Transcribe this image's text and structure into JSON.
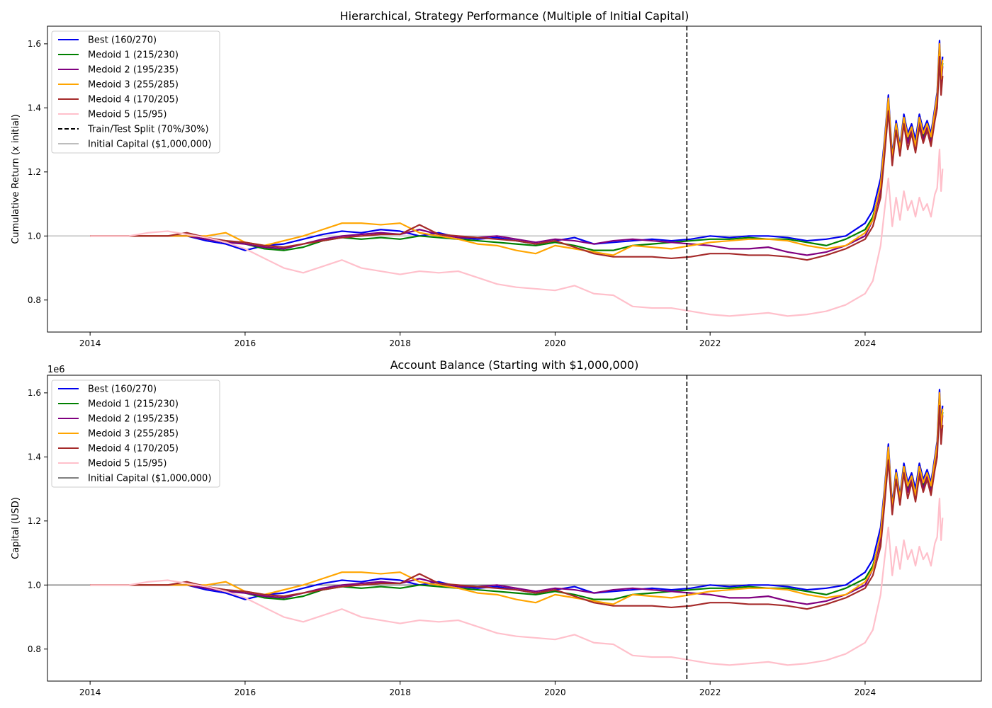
{
  "chart_data": [
    {
      "type": "line",
      "title": "Hierarchical, Strategy Performance (Multiple of Initial Capital)",
      "xlabel": "",
      "ylabel": "Cumulative Return (x initial)",
      "offset_label": "",
      "xlim": [
        2013.45,
        2025.5
      ],
      "ylim": [
        0.7,
        1.655
      ],
      "xticks": [
        2014,
        2016,
        2018,
        2020,
        2022,
        2024
      ],
      "xtick_labels": [
        "2014",
        "2016",
        "2018",
        "2020",
        "2022",
        "2024"
      ],
      "yticks": [
        0.8,
        1.0,
        1.2,
        1.4,
        1.6
      ],
      "ytick_labels": [
        "0.8",
        "1.0",
        "1.2",
        "1.4",
        "1.6"
      ],
      "grid": false,
      "legend_position": "top-left",
      "split": {
        "x": 2021.7,
        "label": "Train/Test Split (70%/30%)",
        "color": "#000000"
      },
      "baseline": {
        "y": 1.0,
        "label": "Initial Capital ($1,000,000)",
        "color": "#bdbdbd"
      }
    },
    {
      "type": "line",
      "title": "Account Balance (Starting with $1,000,000)",
      "xlabel": "",
      "ylabel": "Capital (USD)",
      "offset_label": "1e6",
      "xlim": [
        2013.45,
        2025.5
      ],
      "ylim": [
        0.7,
        1.655
      ],
      "xticks": [
        2014,
        2016,
        2018,
        2020,
        2022,
        2024
      ],
      "xtick_labels": [
        "2014",
        "2016",
        "2018",
        "2020",
        "2022",
        "2024"
      ],
      "yticks": [
        0.8,
        1.0,
        1.2,
        1.4,
        1.6
      ],
      "ytick_labels": [
        "0.8",
        "1.0",
        "1.2",
        "1.4",
        "1.6"
      ],
      "grid": false,
      "legend_position": "top-left",
      "split": {
        "x": 2021.7,
        "label": "",
        "color": "#000000"
      },
      "baseline": {
        "y": 1.0,
        "label": "Initial Capital ($1,000,000)",
        "color": "#808080"
      }
    }
  ],
  "series": [
    {
      "name": "Best (160/270)",
      "color": "#0000ee",
      "x": [
        2014.0,
        2015.0,
        2015.25,
        2015.5,
        2015.75,
        2016.0,
        2016.25,
        2016.5,
        2016.75,
        2017.0,
        2017.25,
        2017.5,
        2017.75,
        2018.0,
        2018.25,
        2018.5,
        2018.75,
        2019.0,
        2019.25,
        2019.5,
        2019.75,
        2020.0,
        2020.25,
        2020.5,
        2020.75,
        2021.0,
        2021.25,
        2021.5,
        2021.75,
        2022.0,
        2022.25,
        2022.5,
        2022.75,
        2023.0,
        2023.25,
        2023.5,
        2023.75,
        2024.0,
        2024.1,
        2024.2,
        2024.25,
        2024.3,
        2024.35,
        2024.4,
        2024.45,
        2024.5,
        2024.55,
        2024.6,
        2024.65,
        2024.7,
        2024.75,
        2024.8,
        2024.85,
        2024.9,
        2024.93,
        2024.96,
        2024.98,
        2025.0
      ],
      "y": [
        1.0,
        1.0,
        1.0,
        0.985,
        0.975,
        0.955,
        0.97,
        0.975,
        0.99,
        1.005,
        1.015,
        1.01,
        1.02,
        1.015,
        1.0,
        1.01,
        0.995,
        0.99,
        0.995,
        0.985,
        0.975,
        0.985,
        0.995,
        0.975,
        0.98,
        0.985,
        0.99,
        0.985,
        0.99,
        1.0,
        0.995,
        1.0,
        1.0,
        0.995,
        0.985,
        0.99,
        1.0,
        1.04,
        1.08,
        1.18,
        1.3,
        1.44,
        1.25,
        1.36,
        1.28,
        1.38,
        1.32,
        1.35,
        1.3,
        1.38,
        1.33,
        1.36,
        1.32,
        1.4,
        1.45,
        1.61,
        1.5,
        1.56
      ]
    },
    {
      "name": "Medoid 1 (215/230)",
      "color": "#008000",
      "x": [
        2014.0,
        2015.0,
        2015.25,
        2015.5,
        2015.75,
        2016.0,
        2016.25,
        2016.5,
        2016.75,
        2017.0,
        2017.25,
        2017.5,
        2017.75,
        2018.0,
        2018.25,
        2018.5,
        2018.75,
        2019.0,
        2019.25,
        2019.5,
        2019.75,
        2020.0,
        2020.25,
        2020.5,
        2020.75,
        2021.0,
        2021.25,
        2021.5,
        2021.75,
        2022.0,
        2022.25,
        2022.5,
        2022.75,
        2023.0,
        2023.25,
        2023.5,
        2023.75,
        2024.0,
        2024.1,
        2024.2,
        2024.25,
        2024.3,
        2024.35,
        2024.4,
        2024.45,
        2024.5,
        2024.55,
        2024.6,
        2024.65,
        2024.7,
        2024.75,
        2024.8,
        2024.85,
        2024.9,
        2024.93,
        2024.96,
        2024.98,
        2025.0
      ],
      "y": [
        1.0,
        1.0,
        1.0,
        0.99,
        0.985,
        0.975,
        0.96,
        0.955,
        0.965,
        0.985,
        0.995,
        0.99,
        0.995,
        0.99,
        1.0,
        0.995,
        0.99,
        0.985,
        0.98,
        0.975,
        0.97,
        0.98,
        0.97,
        0.955,
        0.955,
        0.97,
        0.975,
        0.98,
        0.985,
        0.99,
        0.99,
        0.995,
        0.99,
        0.99,
        0.98,
        0.97,
        0.99,
        1.02,
        1.06,
        1.15,
        1.28,
        1.42,
        1.24,
        1.35,
        1.27,
        1.37,
        1.3,
        1.34,
        1.28,
        1.36,
        1.31,
        1.35,
        1.3,
        1.38,
        1.43,
        1.59,
        1.48,
        1.54
      ]
    },
    {
      "name": "Medoid 2 (195/235)",
      "color": "#800080",
      "x": [
        2014.0,
        2015.0,
        2015.25,
        2015.5,
        2015.75,
        2016.0,
        2016.25,
        2016.5,
        2016.75,
        2017.0,
        2017.25,
        2017.5,
        2017.75,
        2018.0,
        2018.25,
        2018.5,
        2018.75,
        2019.0,
        2019.25,
        2019.5,
        2019.75,
        2020.0,
        2020.25,
        2020.5,
        2020.75,
        2021.0,
        2021.25,
        2021.5,
        2021.75,
        2022.0,
        2022.25,
        2022.5,
        2022.75,
        2023.0,
        2023.25,
        2023.5,
        2023.75,
        2024.0,
        2024.1,
        2024.2,
        2024.25,
        2024.3,
        2024.35,
        2024.4,
        2024.45,
        2024.5,
        2024.55,
        2024.6,
        2024.65,
        2024.7,
        2024.75,
        2024.8,
        2024.85,
        2024.9,
        2024.93,
        2024.96,
        2024.98,
        2025.0
      ],
      "y": [
        1.0,
        1.0,
        1.0,
        0.99,
        0.98,
        0.975,
        0.965,
        0.96,
        0.975,
        0.99,
        1.0,
        1.005,
        1.01,
        1.005,
        1.02,
        1.005,
        0.995,
        0.995,
        1.0,
        0.99,
        0.98,
        0.99,
        0.985,
        0.975,
        0.985,
        0.99,
        0.985,
        0.98,
        0.975,
        0.97,
        0.96,
        0.96,
        0.965,
        0.95,
        0.94,
        0.95,
        0.97,
        1.0,
        1.05,
        1.14,
        1.27,
        1.41,
        1.23,
        1.34,
        1.26,
        1.36,
        1.29,
        1.33,
        1.27,
        1.35,
        1.3,
        1.34,
        1.29,
        1.37,
        1.42,
        1.58,
        1.47,
        1.53
      ]
    },
    {
      "name": "Medoid 3 (255/285)",
      "color": "#ffa500",
      "x": [
        2014.0,
        2015.0,
        2015.25,
        2015.5,
        2015.75,
        2016.0,
        2016.25,
        2016.5,
        2016.75,
        2017.0,
        2017.25,
        2017.5,
        2017.75,
        2018.0,
        2018.25,
        2018.5,
        2018.75,
        2019.0,
        2019.25,
        2019.5,
        2019.75,
        2020.0,
        2020.25,
        2020.5,
        2020.75,
        2021.0,
        2021.25,
        2021.5,
        2021.75,
        2022.0,
        2022.25,
        2022.5,
        2022.75,
        2023.0,
        2023.25,
        2023.5,
        2023.75,
        2024.0,
        2024.1,
        2024.2,
        2024.25,
        2024.3,
        2024.35,
        2024.4,
        2024.45,
        2024.5,
        2024.55,
        2024.6,
        2024.65,
        2024.7,
        2024.75,
        2024.8,
        2024.85,
        2024.9,
        2024.93,
        2024.96,
        2024.98,
        2025.0
      ],
      "y": [
        1.0,
        1.0,
        1.0,
        1.0,
        1.01,
        0.98,
        0.97,
        0.985,
        1.0,
        1.02,
        1.04,
        1.04,
        1.035,
        1.04,
        1.01,
        1.0,
        0.99,
        0.975,
        0.97,
        0.955,
        0.945,
        0.97,
        0.96,
        0.95,
        0.94,
        0.97,
        0.965,
        0.96,
        0.97,
        0.98,
        0.985,
        0.99,
        0.99,
        0.985,
        0.97,
        0.96,
        0.97,
        1.01,
        1.05,
        1.16,
        1.29,
        1.43,
        1.24,
        1.35,
        1.27,
        1.37,
        1.31,
        1.34,
        1.28,
        1.37,
        1.32,
        1.35,
        1.31,
        1.39,
        1.44,
        1.6,
        1.49,
        1.55
      ]
    },
    {
      "name": "Medoid 4 (170/205)",
      "color": "#a52a2a",
      "x": [
        2014.0,
        2015.0,
        2015.25,
        2015.5,
        2015.75,
        2016.0,
        2016.25,
        2016.5,
        2016.75,
        2017.0,
        2017.25,
        2017.5,
        2017.75,
        2018.0,
        2018.25,
        2018.5,
        2018.75,
        2019.0,
        2019.25,
        2019.5,
        2019.75,
        2020.0,
        2020.25,
        2020.5,
        2020.75,
        2021.0,
        2021.25,
        2021.5,
        2021.75,
        2022.0,
        2022.25,
        2022.5,
        2022.75,
        2023.0,
        2023.25,
        2023.5,
        2023.75,
        2024.0,
        2024.1,
        2024.2,
        2024.25,
        2024.3,
        2024.35,
        2024.4,
        2024.45,
        2024.5,
        2024.55,
        2024.6,
        2024.65,
        2024.7,
        2024.75,
        2024.8,
        2024.85,
        2024.9,
        2024.93,
        2024.96,
        2024.98,
        2025.0
      ],
      "y": [
        1.0,
        1.0,
        1.01,
        0.995,
        0.985,
        0.98,
        0.97,
        0.965,
        0.975,
        0.985,
        0.995,
        1.0,
        1.005,
        1.005,
        1.035,
        1.005,
        1.0,
        0.995,
        0.99,
        0.985,
        0.975,
        0.985,
        0.965,
        0.945,
        0.935,
        0.935,
        0.935,
        0.93,
        0.935,
        0.945,
        0.945,
        0.94,
        0.94,
        0.935,
        0.925,
        0.94,
        0.96,
        0.99,
        1.03,
        1.12,
        1.25,
        1.39,
        1.22,
        1.33,
        1.25,
        1.35,
        1.27,
        1.32,
        1.26,
        1.34,
        1.29,
        1.33,
        1.28,
        1.36,
        1.4,
        1.56,
        1.44,
        1.5
      ]
    },
    {
      "name": "Medoid 5 (15/95)",
      "color": "#ffc0cb",
      "x": [
        2014.0,
        2014.5,
        2014.75,
        2015.0,
        2015.25,
        2015.5,
        2015.75,
        2016.0,
        2016.25,
        2016.5,
        2016.75,
        2017.0,
        2017.25,
        2017.5,
        2017.75,
        2018.0,
        2018.25,
        2018.5,
        2018.75,
        2019.0,
        2019.25,
        2019.5,
        2019.75,
        2020.0,
        2020.25,
        2020.5,
        2020.75,
        2021.0,
        2021.25,
        2021.5,
        2021.75,
        2022.0,
        2022.25,
        2022.5,
        2022.75,
        2023.0,
        2023.25,
        2023.5,
        2023.75,
        2024.0,
        2024.1,
        2024.2,
        2024.25,
        2024.3,
        2024.35,
        2024.4,
        2024.45,
        2024.5,
        2024.55,
        2024.6,
        2024.65,
        2024.7,
        2024.75,
        2024.8,
        2024.85,
        2024.9,
        2024.93,
        2024.96,
        2024.98,
        2025.0
      ],
      "y": [
        1.0,
        1.0,
        1.01,
        1.015,
        1.005,
        0.995,
        0.98,
        0.96,
        0.93,
        0.9,
        0.885,
        0.905,
        0.925,
        0.9,
        0.89,
        0.88,
        0.89,
        0.885,
        0.89,
        0.87,
        0.85,
        0.84,
        0.835,
        0.83,
        0.845,
        0.82,
        0.815,
        0.78,
        0.775,
        0.775,
        0.765,
        0.755,
        0.75,
        0.755,
        0.76,
        0.75,
        0.755,
        0.765,
        0.785,
        0.82,
        0.86,
        0.97,
        1.08,
        1.18,
        1.03,
        1.12,
        1.05,
        1.14,
        1.08,
        1.11,
        1.06,
        1.12,
        1.08,
        1.1,
        1.06,
        1.13,
        1.15,
        1.27,
        1.14,
        1.21
      ]
    }
  ]
}
